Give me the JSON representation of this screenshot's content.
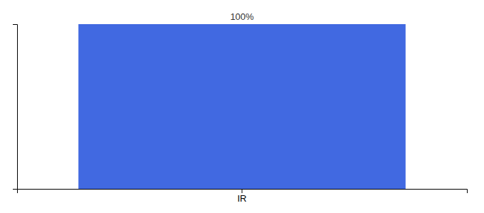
{
  "chart_data": {
    "type": "bar",
    "categories": [
      "IR"
    ],
    "values": [
      100
    ],
    "value_labels": [
      "100%"
    ],
    "data_labels": true,
    "color": "#4169E1",
    "ylim": [
      0,
      100
    ],
    "tick_labels": "x"
  }
}
